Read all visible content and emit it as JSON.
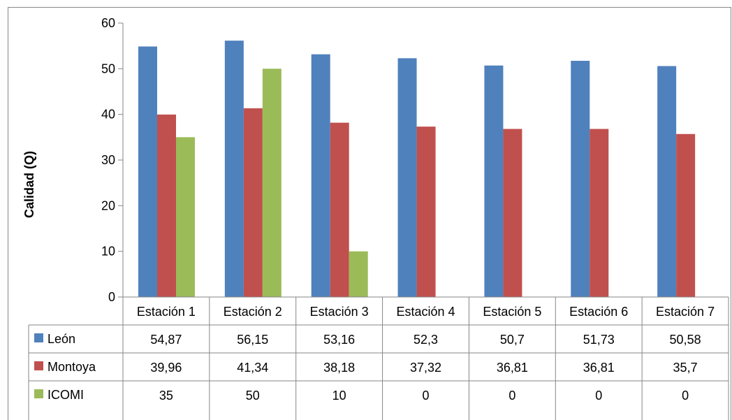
{
  "chart_data": {
    "type": "bar",
    "title": "",
    "xlabel": "",
    "ylabel": "Calidad (Q)",
    "ylim": [
      0,
      60
    ],
    "yticks": [
      "0",
      "10",
      "20",
      "30",
      "40",
      "50",
      "60"
    ],
    "grid": false,
    "legend": "data-table-left",
    "categories": [
      "Estación 1",
      "Estación 2",
      "Estación 3",
      "Estación 4",
      "Estación 5",
      "Estación 6",
      "Estación 7"
    ],
    "series": [
      {
        "name": "León",
        "color": "#4F81BD",
        "values": [
          54.87,
          56.15,
          53.16,
          52.3,
          50.7,
          51.73,
          50.58
        ],
        "labels": [
          "54,87",
          "56,15",
          "53,16",
          "52,3",
          "50,7",
          "51,73",
          "50,58"
        ]
      },
      {
        "name": "Montoya",
        "color": "#C0504D",
        "values": [
          39.96,
          41.34,
          38.18,
          37.32,
          36.81,
          36.81,
          35.7
        ],
        "labels": [
          "39,96",
          "41,34",
          "38,18",
          "37,32",
          "36,81",
          "36,81",
          "35,7"
        ]
      },
      {
        "name": "ICOMI",
        "color": "#9BBB59",
        "values": [
          35,
          50,
          10,
          0,
          0,
          0,
          0
        ],
        "labels": [
          "35",
          "50",
          "10",
          "0",
          "0",
          "0",
          "0"
        ]
      }
    ]
  }
}
